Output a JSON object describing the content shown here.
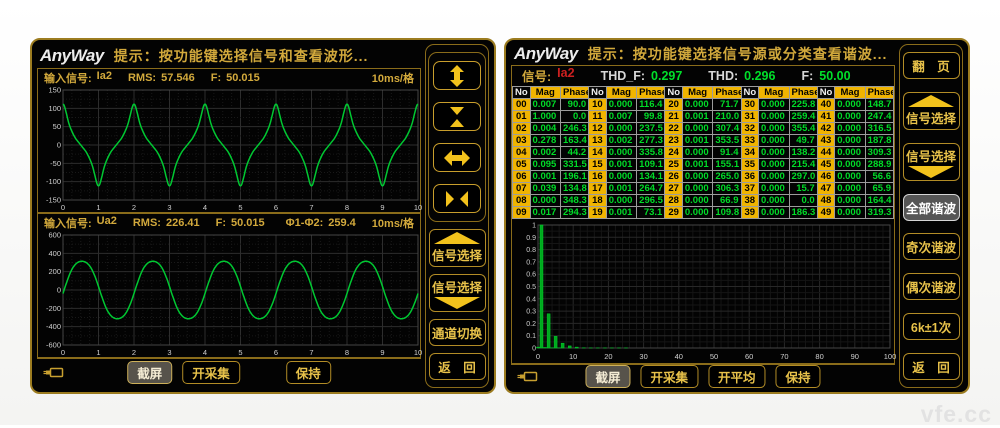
{
  "watermark": "vfe.cc",
  "colors": {
    "gold_text": "#d2a93c",
    "gold_border": "#9c7c20",
    "arrow_yellow": "#f2c21c",
    "value_green": "#00e02a",
    "wave_green": "#00c832",
    "table_header_bg": "#f0b400",
    "signal_red": "#cc2020",
    "selected_button_bg": "#565656"
  },
  "icons": {
    "expand_vertical": "↕",
    "compress_vertical": "▼▲",
    "expand_horizontal": "↔",
    "compress_horizontal": "▶◀",
    "triangle_up": "▲",
    "triangle_down": "▼",
    "power_plug": "⎓"
  },
  "left_panel": {
    "logo": "AnyWay",
    "hint": "提示：按功能键选择信号和查看波形...",
    "wave1_header": {
      "input_label": "输入信号:",
      "signal": "Ia2",
      "rms_label": "RMS:",
      "rms": "57.546",
      "freq_label": "F:",
      "freq": "50.015",
      "scale": "10ms/格"
    },
    "wave2_header": {
      "input_label": "输入信号:",
      "signal": "Ua2",
      "rms_label": "RMS:",
      "rms": "226.41",
      "freq_label": "F:",
      "freq": "50.015",
      "phase_label": "Φ1-Φ2:",
      "phase": "259.4",
      "scale": "10ms/格"
    },
    "side_buttons": {
      "signal_select_up": "信号选择",
      "signal_select_down": "信号选择",
      "channel_switch": "通道切换",
      "back": "返　回"
    },
    "bottom_bar": {
      "screenshot": "截屏",
      "start_acquire": "开采集",
      "hold": "保持"
    }
  },
  "right_panel": {
    "logo": "AnyWay",
    "hint": "提示：按功能键选择信号源或分类查看谐波...",
    "info_bar": {
      "signal_label": "信号:",
      "signal": "Ia2",
      "thdf_label": "THD_F:",
      "thdf": "0.297",
      "thd_label": "THD:",
      "thd": "0.296",
      "freq_label": "F:",
      "freq": "50.00"
    },
    "table_headers": [
      "No",
      "Mag",
      "Phase"
    ],
    "side_buttons": {
      "page": "翻　页",
      "signal_select_up": "信号选择",
      "signal_select_down": "信号选择",
      "all_harmonics": "全部谐波",
      "odd_harmonics": "奇次谐波",
      "even_harmonics": "偶次谐波",
      "six_k": "6k±1次",
      "back": "返　回"
    },
    "bottom_bar": {
      "screenshot": "截屏",
      "start_acquire": "开采集",
      "start_average": "开平均",
      "hold": "保持"
    }
  },
  "chart_data": [
    {
      "type": "line",
      "signal": "Ia2",
      "x_divisions": 10,
      "cycles": 5,
      "x_ticks": [
        0,
        1,
        2,
        3,
        4,
        5,
        6,
        7,
        8,
        9,
        10
      ],
      "ylim": [
        -150,
        150
      ],
      "y_tick_step": 50,
      "time_per_div": "10ms/格",
      "synthesis": {
        "kind": "harmonic_sum",
        "base_peak": 78,
        "harmonics": [
          [
            1,
            1.0
          ],
          [
            3,
            0.278
          ],
          [
            5,
            0.095
          ],
          [
            7,
            0.039
          ],
          [
            9,
            0.017
          ]
        ]
      }
    },
    {
      "type": "line",
      "signal": "Ua2",
      "x_divisions": 10,
      "cycles": 5,
      "x_ticks": [
        0,
        1,
        2,
        3,
        4,
        5,
        6,
        7,
        8,
        9,
        10
      ],
      "ylim": [
        -600,
        600
      ],
      "y_tick_step": 200,
      "time_per_div": "10ms/格",
      "synthesis": {
        "kind": "flat_sine",
        "peak": 330,
        "phase_rad": -0.1,
        "flatten": 0.05
      }
    },
    {
      "type": "bar",
      "signal": "Ia2",
      "xlim": [
        0,
        100
      ],
      "ylim": [
        0,
        1
      ],
      "x_tick_step": 10,
      "y_tick_step": 0.1,
      "mags": [
        0.007,
        1.0,
        0.004,
        0.278,
        0.002,
        0.095,
        0.001,
        0.039,
        0.0,
        0.017,
        0.0,
        0.007,
        0.0,
        0.002,
        0.0,
        0.001,
        0.0,
        0.001,
        0.0,
        0.001,
        0.0,
        0.001,
        0.0,
        0.001,
        0.0,
        0.001,
        0.0,
        0.0,
        0.0,
        0.0,
        0.0,
        0.0,
        0.0,
        0.0,
        0.0,
        0.0,
        0.0,
        0.0,
        0.0,
        0.0,
        0.0,
        0.0,
        0.0,
        0.0,
        0.0,
        0.0,
        0.0,
        0.0,
        0.0,
        0.0
      ],
      "phases": [
        90.0,
        0.0,
        246.3,
        163.4,
        44.2,
        331.5,
        196.1,
        134.8,
        348.3,
        294.3,
        116.4,
        99.8,
        237.5,
        277.3,
        335.8,
        109.1,
        134.1,
        264.7,
        296.5,
        73.1,
        71.7,
        210.0,
        307.4,
        353.5,
        91.4,
        155.1,
        265.0,
        306.3,
        66.9,
        109.8,
        225.8,
        259.4,
        355.4,
        49.7,
        138.2,
        215.4,
        297.0,
        15.7,
        0.0,
        186.3,
        148.7,
        247.4,
        316.5,
        187.8,
        309.3,
        288.9,
        56.6,
        65.9,
        164.4,
        319.3
      ]
    }
  ]
}
